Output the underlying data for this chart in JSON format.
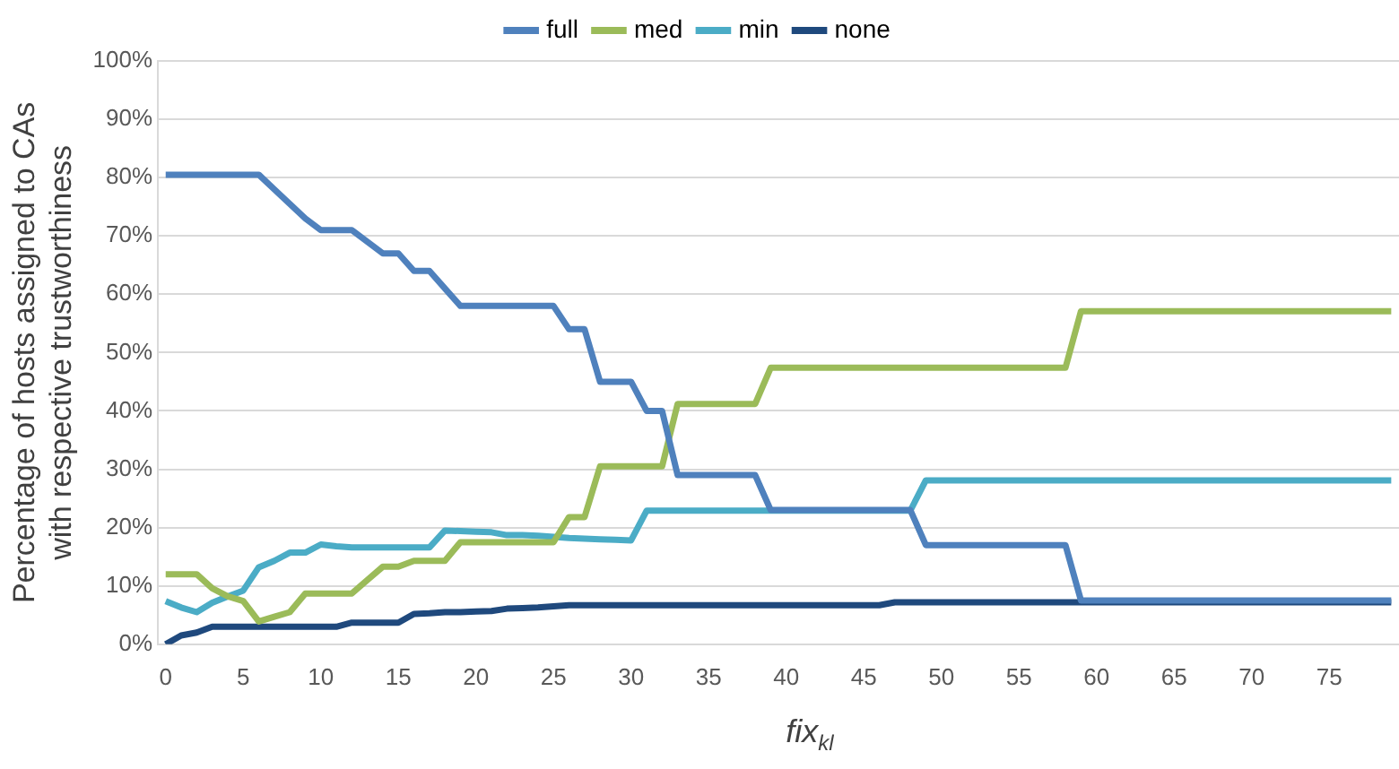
{
  "chart_data": {
    "type": "line",
    "xlabel": "fix$_{kl}$",
    "ylabel": "Percentage of hosts assigned to CAs\nwith respective trustworthiness",
    "x": [
      0,
      1,
      2,
      3,
      4,
      5,
      6,
      7,
      8,
      9,
      10,
      11,
      12,
      13,
      14,
      15,
      16,
      17,
      18,
      19,
      20,
      21,
      22,
      23,
      24,
      25,
      26,
      27,
      28,
      29,
      30,
      31,
      32,
      33,
      34,
      35,
      36,
      37,
      38,
      39,
      40,
      41,
      42,
      43,
      44,
      45,
      46,
      47,
      48,
      49,
      50,
      51,
      52,
      53,
      54,
      55,
      56,
      57,
      58,
      59,
      60,
      61,
      62,
      63,
      64,
      65,
      66,
      67,
      68,
      69,
      70,
      71,
      72,
      73,
      74,
      75,
      76,
      77,
      78,
      79
    ],
    "xlim": [
      -0.5,
      79.5
    ],
    "xticks": [
      0,
      5,
      10,
      15,
      20,
      25,
      30,
      35,
      40,
      45,
      50,
      55,
      60,
      65,
      70,
      75
    ],
    "ylim": [
      0,
      100
    ],
    "yticks": [
      {
        "value": 0,
        "label": "0%"
      },
      {
        "value": 10,
        "label": "10%"
      },
      {
        "value": 20,
        "label": "20%"
      },
      {
        "value": 30,
        "label": "30%"
      },
      {
        "value": 40,
        "label": "40%"
      },
      {
        "value": 50,
        "label": "50%"
      },
      {
        "value": 60,
        "label": "60%"
      },
      {
        "value": 70,
        "label": "70%"
      },
      {
        "value": 80,
        "label": "80%"
      },
      {
        "value": 90,
        "label": "90%"
      },
      {
        "value": 100,
        "label": "100%"
      }
    ],
    "grid": "y",
    "legend": "top",
    "marker": "none",
    "line_style": "solid",
    "series": [
      {
        "name": "full",
        "color": "#4f81bd",
        "values": [
          80.5,
          80.5,
          80.5,
          80.5,
          80.5,
          80.5,
          80.5,
          78,
          75.5,
          73,
          71,
          71,
          71,
          69,
          67,
          67,
          64,
          64,
          61,
          58,
          58,
          58,
          58,
          58,
          58,
          58,
          54,
          54,
          45,
          45,
          45,
          40,
          40,
          29,
          29,
          29,
          29,
          29,
          29,
          23,
          23,
          23,
          23,
          23,
          23,
          23,
          23,
          23,
          23,
          17,
          17,
          17,
          17,
          17,
          17,
          17,
          17,
          17,
          17,
          7.5,
          7.5,
          7.5,
          7.5,
          7.5,
          7.5,
          7.5,
          7.5,
          7.5,
          7.5,
          7.5,
          7.5,
          7.5,
          7.5,
          7.5,
          7.5,
          7.5,
          7.5,
          7.5,
          7.5,
          7.5
        ]
      },
      {
        "name": "med",
        "color": "#9bbb59",
        "values": [
          12,
          12,
          12,
          9.6,
          8.2,
          7.4,
          3.9,
          4.7,
          5.5,
          8.7,
          8.7,
          8.7,
          8.7,
          11,
          13.3,
          13.3,
          14.3,
          14.3,
          14.3,
          17.5,
          17.5,
          17.5,
          17.5,
          17.5,
          17.5,
          17.5,
          21.8,
          21.8,
          30.5,
          30.5,
          30.5,
          30.5,
          30.5,
          41.2,
          41.2,
          41.2,
          41.2,
          41.2,
          41.2,
          47.4,
          47.4,
          47.4,
          47.4,
          47.4,
          47.4,
          47.4,
          47.4,
          47.4,
          47.4,
          47.4,
          47.4,
          47.4,
          47.4,
          47.4,
          47.4,
          47.4,
          47.4,
          47.4,
          47.4,
          57.1,
          57.1,
          57.1,
          57.1,
          57.1,
          57.1,
          57.1,
          57.1,
          57.1,
          57.1,
          57.1,
          57.1,
          57.1,
          57.1,
          57.1,
          57.1,
          57.1,
          57.1,
          57.1,
          57.1,
          57.1
        ]
      },
      {
        "name": "min",
        "color": "#4bacc6",
        "values": [
          7.4,
          6.3,
          5.5,
          7.1,
          8.2,
          9.2,
          13.2,
          14.3,
          15.7,
          15.7,
          17.1,
          16.8,
          16.6,
          16.6,
          16.6,
          16.6,
          16.6,
          16.6,
          19.5,
          19.4,
          19.3,
          19.2,
          18.7,
          18.7,
          18.6,
          18.4,
          18.2,
          18.1,
          18,
          17.9,
          17.8,
          22.9,
          22.9,
          22.9,
          22.9,
          22.9,
          22.9,
          22.9,
          22.9,
          22.9,
          22.9,
          22.9,
          22.9,
          22.9,
          22.9,
          22.9,
          22.9,
          22.9,
          22.9,
          28.1,
          28.1,
          28.1,
          28.1,
          28.1,
          28.1,
          28.1,
          28.1,
          28.1,
          28.1,
          28.1,
          28.1,
          28.1,
          28.1,
          28.1,
          28.1,
          28.1,
          28.1,
          28.1,
          28.1,
          28.1,
          28.1,
          28.1,
          28.1,
          28.1,
          28.1,
          28.1,
          28.1,
          28.1,
          28.1,
          28.1
        ]
      },
      {
        "name": "none",
        "color": "#1f497d",
        "values": [
          0,
          1.5,
          2,
          3,
          3,
          3,
          3,
          3,
          3,
          3,
          3,
          3,
          3.7,
          3.7,
          3.7,
          3.7,
          5.2,
          5.3,
          5.5,
          5.5,
          5.6,
          5.7,
          6.1,
          6.2,
          6.3,
          6.5,
          6.7,
          6.7,
          6.7,
          6.7,
          6.7,
          6.7,
          6.7,
          6.7,
          6.7,
          6.7,
          6.7,
          6.7,
          6.7,
          6.7,
          6.7,
          6.7,
          6.7,
          6.7,
          6.7,
          6.7,
          6.7,
          7.2,
          7.2,
          7.2,
          7.2,
          7.2,
          7.2,
          7.2,
          7.2,
          7.2,
          7.2,
          7.2,
          7.2,
          7.2,
          7.2,
          7.2,
          7.2,
          7.2,
          7.2,
          7.2,
          7.2,
          7.2,
          7.2,
          7.2,
          7.2,
          7.2,
          7.2,
          7.2,
          7.2,
          7.2,
          7.2,
          7.2,
          7.2,
          7.2
        ]
      }
    ]
  }
}
